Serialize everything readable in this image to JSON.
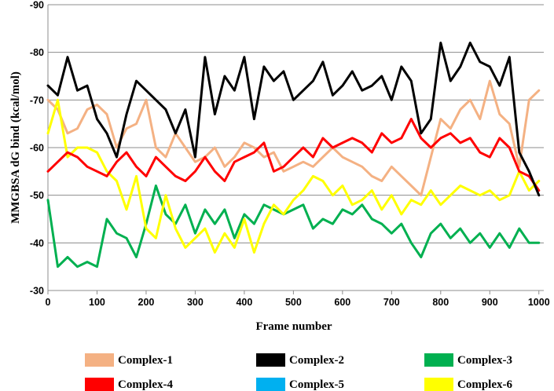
{
  "chart_data": {
    "type": "line",
    "title": "",
    "xlabel": "Frame number",
    "ylabel": "MMGBSA dG bind (kcal/mol)",
    "xlim": [
      0,
      1010
    ],
    "ylim": [
      -90,
      -30
    ],
    "y_axis_inverted": true,
    "x_ticks": [
      0,
      100,
      200,
      300,
      400,
      500,
      600,
      700,
      800,
      900,
      1000
    ],
    "y_ticks": [
      -90,
      -80,
      -70,
      -60,
      -50,
      -40,
      -30
    ],
    "x_tick_labels": [
      "0",
      "100",
      "200",
      "300",
      "400",
      "500",
      "600",
      "700",
      "800",
      "900",
      "1000"
    ],
    "y_tick_labels": [
      "-90",
      "-80",
      "-70",
      "-60",
      "-50",
      "-40",
      "-30"
    ],
    "grid": "horizontal",
    "legend_position": "bottom",
    "series": [
      {
        "name": "Complex-1",
        "color": "#F4B183",
        "x": [
          0,
          20,
          40,
          60,
          80,
          100,
          120,
          140,
          160,
          180,
          200,
          220,
          240,
          260,
          280,
          300,
          320,
          340,
          360,
          380,
          400,
          420,
          440,
          460,
          480,
          500,
          520,
          540,
          560,
          580,
          600,
          620,
          640,
          660,
          680,
          700,
          720,
          740,
          760,
          780,
          800,
          820,
          840,
          860,
          880,
          900,
          920,
          940,
          960,
          980,
          1000
        ],
        "y": [
          -70,
          -68,
          -63,
          -64,
          -68,
          -69,
          -67,
          -60,
          -64,
          -65,
          -70,
          -60,
          -58,
          -63,
          -60,
          -57,
          -58,
          -60,
          -56,
          -58,
          -61,
          -60,
          -58,
          -59,
          -55,
          -56,
          -57,
          -56,
          -58,
          -60,
          -58,
          -57,
          -56,
          -54,
          -53,
          -56,
          -54,
          -52,
          -50,
          -58,
          -66,
          -64,
          -68,
          -70,
          -66,
          -74,
          -67,
          -65,
          -56,
          -70,
          -72
        ]
      },
      {
        "name": "Complex-2",
        "color": "#000000",
        "x": [
          0,
          20,
          40,
          60,
          80,
          100,
          120,
          140,
          160,
          180,
          200,
          220,
          240,
          260,
          280,
          300,
          320,
          340,
          360,
          380,
          400,
          420,
          440,
          460,
          480,
          500,
          520,
          540,
          560,
          580,
          600,
          620,
          640,
          660,
          680,
          700,
          720,
          740,
          760,
          780,
          800,
          820,
          840,
          860,
          880,
          900,
          920,
          940,
          960,
          980,
          1000
        ],
        "y": [
          -73,
          -71,
          -79,
          -72,
          -73,
          -66,
          -63,
          -58,
          -67,
          -74,
          -72,
          -70,
          -68,
          -63,
          -68,
          -58,
          -79,
          -67,
          -75,
          -72,
          -79,
          -66,
          -77,
          -74,
          -76,
          -70,
          -72,
          -74,
          -78,
          -71,
          -73,
          -76,
          -72,
          -73,
          -75,
          -70,
          -77,
          -74,
          -63,
          -66,
          -82,
          -74,
          -77,
          -82,
          -78,
          -77,
          -73,
          -79,
          -59,
          -55,
          -50
        ]
      },
      {
        "name": "Complex-3",
        "color": "#00B050",
        "x": [
          0,
          20,
          40,
          60,
          80,
          100,
          120,
          140,
          160,
          180,
          200,
          220,
          240,
          260,
          280,
          300,
          320,
          340,
          360,
          380,
          400,
          420,
          440,
          460,
          480,
          500,
          520,
          540,
          560,
          580,
          600,
          620,
          640,
          660,
          680,
          700,
          720,
          740,
          760,
          780,
          800,
          820,
          840,
          860,
          880,
          900,
          920,
          940,
          960,
          980,
          1000
        ],
        "y": [
          -49,
          -35,
          -37,
          -35,
          -36,
          -35,
          -45,
          -42,
          -41,
          -37,
          -44,
          -52,
          -46,
          -44,
          -48,
          -42,
          -47,
          -44,
          -47,
          -41,
          -46,
          -44,
          -48,
          -47,
          -46,
          -47,
          -48,
          -43,
          -45,
          -44,
          -47,
          -46,
          -48,
          -45,
          -44,
          -42,
          -44,
          -40,
          -37,
          -42,
          -44,
          -41,
          -43,
          -40,
          -42,
          -39,
          -42,
          -39,
          -43,
          -40,
          -40
        ]
      },
      {
        "name": "Complex-4",
        "color": "#FF0000",
        "x": [
          0,
          20,
          40,
          60,
          80,
          100,
          120,
          140,
          160,
          180,
          200,
          220,
          240,
          260,
          280,
          300,
          320,
          340,
          360,
          380,
          400,
          420,
          440,
          460,
          480,
          500,
          520,
          540,
          560,
          580,
          600,
          620,
          640,
          660,
          680,
          700,
          720,
          740,
          760,
          780,
          800,
          820,
          840,
          860,
          880,
          900,
          920,
          940,
          960,
          980,
          1000
        ],
        "y": [
          -55,
          -57,
          -59,
          -58,
          -56,
          -55,
          -54,
          -57,
          -59,
          -56,
          -54,
          -58,
          -56,
          -54,
          -53,
          -55,
          -58,
          -55,
          -53,
          -57,
          -58,
          -59,
          -61,
          -55,
          -56,
          -58,
          -60,
          -58,
          -62,
          -60,
          -61,
          -62,
          -61,
          -59,
          -63,
          -61,
          -62,
          -66,
          -62,
          -60,
          -62,
          -63,
          -61,
          -62,
          -59,
          -58,
          -62,
          -60,
          -55,
          -54,
          -51
        ]
      },
      {
        "name": "Complex-5",
        "color": "#00B0F0",
        "x": [],
        "y": []
      },
      {
        "name": "Complex-6",
        "color": "#FFFF00",
        "x": [
          0,
          20,
          40,
          60,
          80,
          100,
          120,
          140,
          160,
          180,
          200,
          220,
          240,
          260,
          280,
          300,
          320,
          340,
          360,
          380,
          400,
          420,
          440,
          460,
          480,
          500,
          520,
          540,
          560,
          580,
          600,
          620,
          640,
          660,
          680,
          700,
          720,
          740,
          760,
          780,
          800,
          820,
          840,
          860,
          880,
          900,
          920,
          940,
          960,
          980,
          1000
        ],
        "y": [
          -63,
          -70,
          -58,
          -60,
          -60,
          -59,
          -55,
          -53,
          -47,
          -54,
          -43,
          -41,
          -50,
          -43,
          -39,
          -41,
          -43,
          -38,
          -42,
          -39,
          -45,
          -38,
          -44,
          -48,
          -46,
          -49,
          -51,
          -54,
          -53,
          -50,
          -52,
          -48,
          -49,
          -51,
          -47,
          -50,
          -46,
          -49,
          -48,
          -51,
          -48,
          -50,
          -52,
          -51,
          -50,
          -51,
          -49,
          -50,
          -55,
          -51,
          -53
        ]
      }
    ]
  }
}
